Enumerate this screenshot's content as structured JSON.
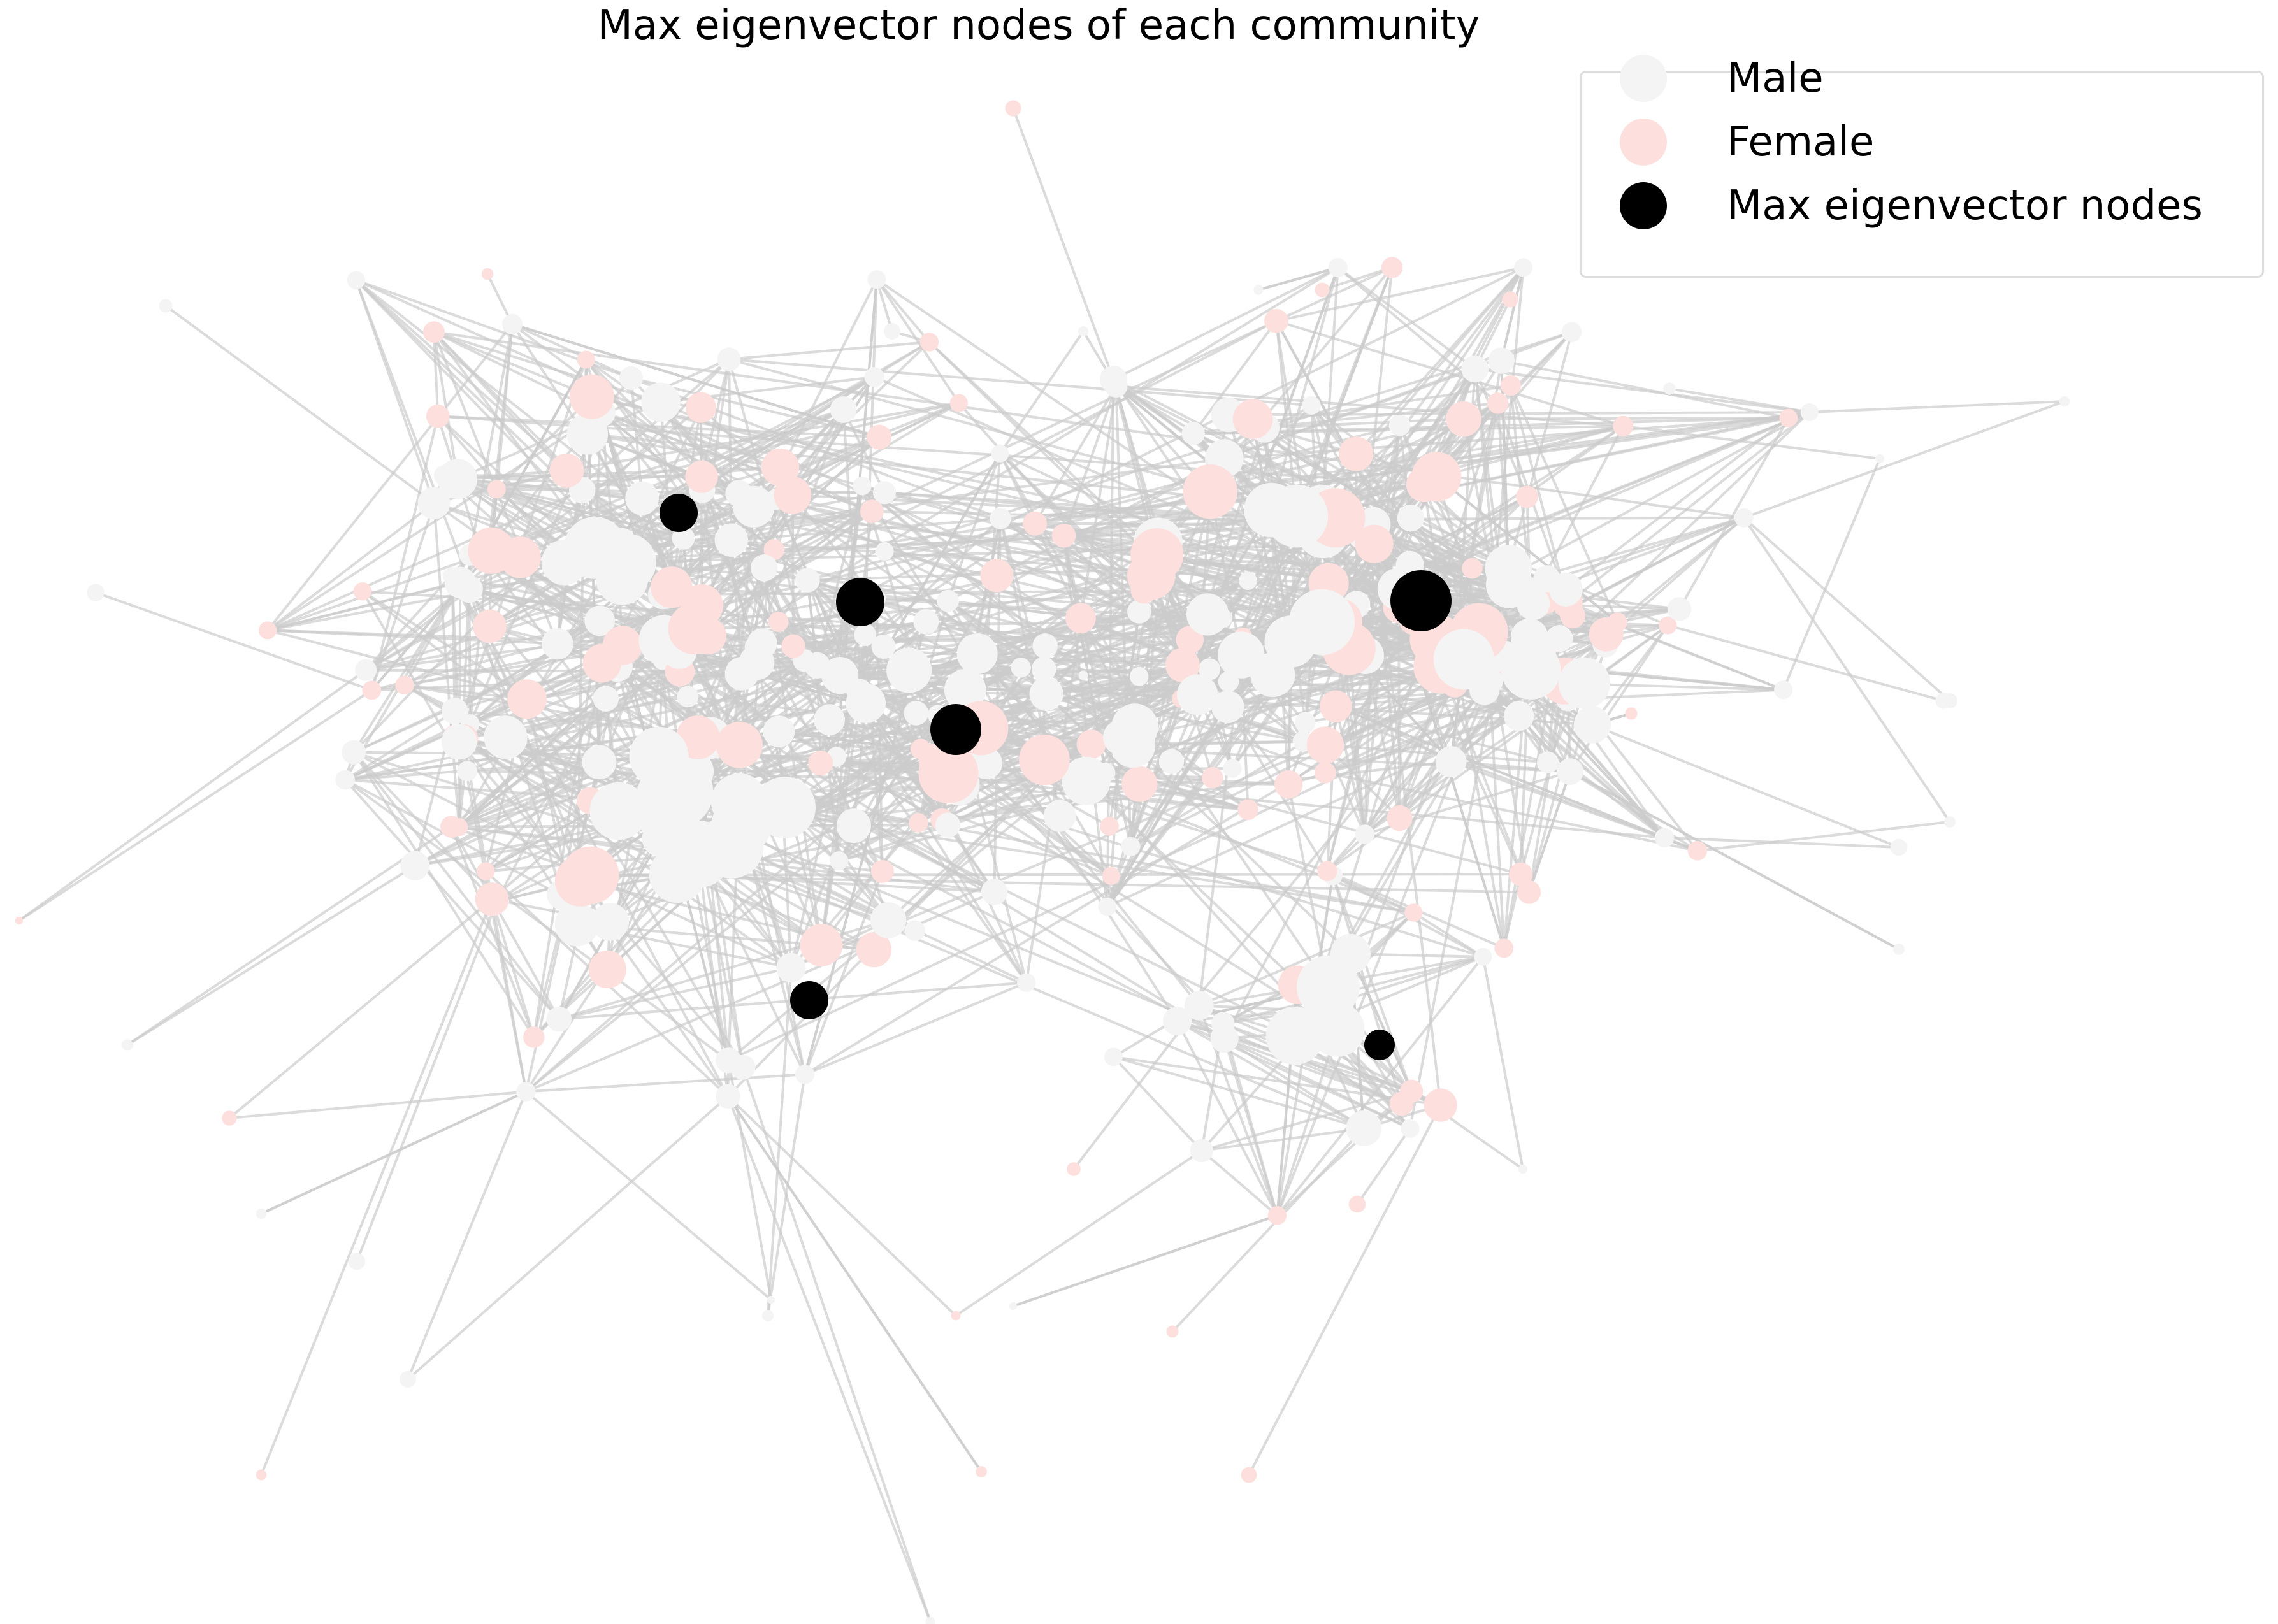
{
  "title": "Max eigenvector nodes of each community",
  "colors": {
    "male": "#f4f4f4",
    "female": "#fde0dd",
    "highlight": "#000000",
    "edge": "#cccccc"
  },
  "legend": {
    "items": [
      {
        "label": "Male",
        "color": "#f4f4f4"
      },
      {
        "label": "Female",
        "color": "#fde0dd"
      },
      {
        "label": "Max eigenvector nodes",
        "color": "#000000"
      }
    ]
  }
}
